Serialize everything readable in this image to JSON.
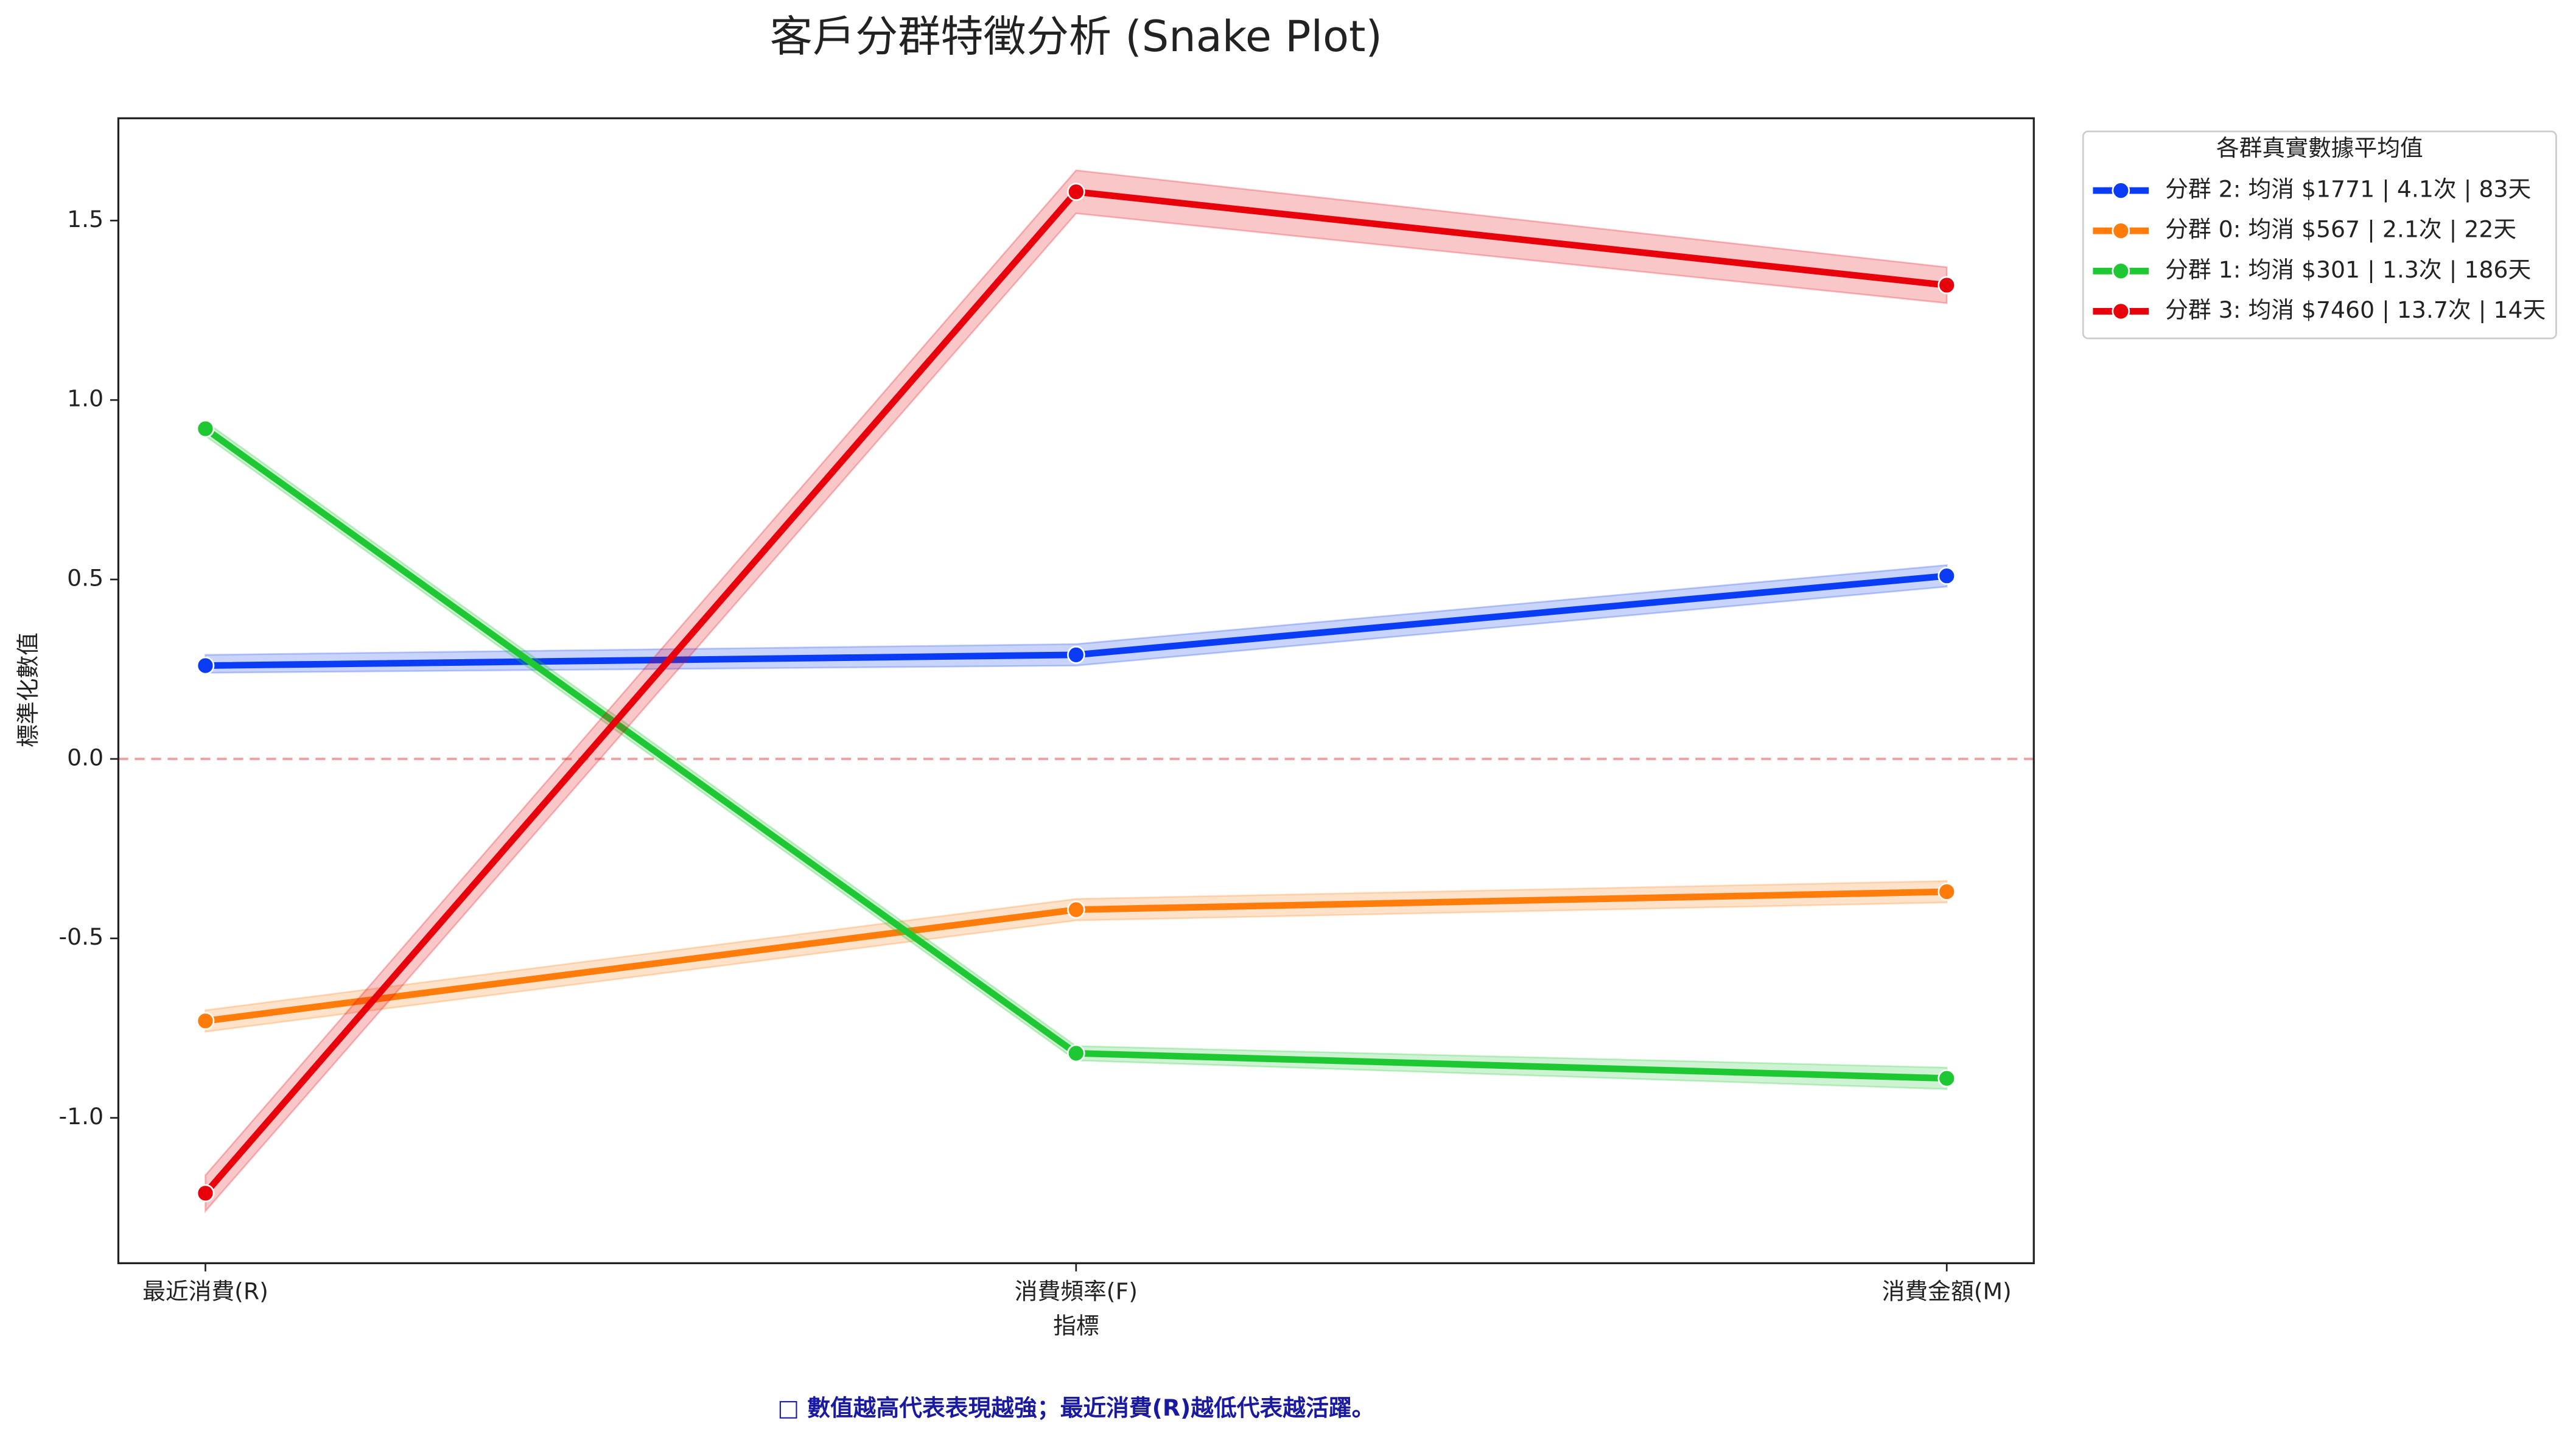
{
  "chart_data": {
    "type": "line",
    "title": "客戶分群特徵分析 (Snake Plot)",
    "x_label": "指標",
    "y_label": "標準化數值",
    "categories": [
      "最近消費(R)",
      "消費頻率(F)",
      "消費金額(M)"
    ],
    "series": [
      {
        "name": "分群 2: 均消 $1771 | 4.1次 | 83天",
        "color": "#0a3cf5",
        "values": [
          0.26,
          0.29,
          0.51
        ],
        "lower": [
          0.24,
          0.26,
          0.48
        ],
        "upper": [
          0.29,
          0.32,
          0.54
        ]
      },
      {
        "name": "分群 0: 均消 $567 | 2.1次 | 22天",
        "color": "#ff7b0a",
        "values": [
          -0.73,
          -0.42,
          -0.37
        ],
        "lower": [
          -0.76,
          -0.45,
          -0.4
        ],
        "upper": [
          -0.7,
          -0.39,
          -0.34
        ]
      },
      {
        "name": "分群 1: 均消 $301 | 1.3次 | 186天",
        "color": "#1ec832",
        "values": [
          0.92,
          -0.82,
          -0.89
        ],
        "lower": [
          0.9,
          -0.84,
          -0.92
        ],
        "upper": [
          0.94,
          -0.8,
          -0.86
        ]
      },
      {
        "name": "分群 3: 均消 $7460 | 13.7次 | 14天",
        "color": "#e8000b",
        "values": [
          -1.21,
          1.58,
          1.32
        ],
        "lower": [
          -1.26,
          1.52,
          1.27
        ],
        "upper": [
          -1.16,
          1.64,
          1.37
        ]
      }
    ],
    "ylim": [
      -1.405,
      1.785
    ],
    "yticks": [
      {
        "value": -1,
        "label": "-1.0"
      },
      -0.5,
      {
        "value": 0,
        "label": "0.0"
      },
      0.5,
      {
        "value": 1,
        "label": "1.0"
      },
      1.5
    ],
    "reference_line": 0,
    "reference_color": "#f4a0a0",
    "legend_title": "各群真實數據平均值",
    "legend": "upper right outside",
    "footnote": "□ 數值越高代表表現越強；最近消費(R)越低代表越活躍。"
  }
}
